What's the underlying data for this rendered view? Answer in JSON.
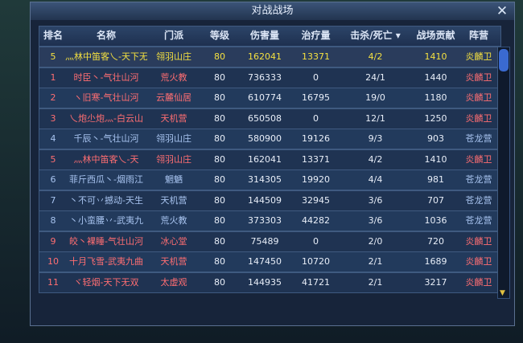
{
  "header": {
    "title": "对战战场"
  },
  "table": {
    "columns": [
      "排名",
      "名称",
      "门派",
      "等级",
      "伤害量",
      "治疗量",
      "击杀/死亡",
      "战场贡献",
      "阵营"
    ],
    "self_row": [
      "5",
      "灬林中笛客乀-天下无",
      "翎羽山庄",
      80,
      162041,
      13371,
      "4/2",
      1410,
      "炎麟卫"
    ],
    "rows": [
      [
        "1",
        "时臣丶-气壮山河",
        "荒火教",
        80,
        736333,
        0,
        "24/1",
        1440,
        "炎麟卫"
      ],
      [
        "2",
        "ヽ旧寒-气壮山河",
        "云麓仙居",
        80,
        610774,
        16795,
        "19/0",
        1180,
        "炎麟卫"
      ],
      [
        "3",
        "乀炮尐炮灬-白云山",
        "天机营",
        80,
        650508,
        0,
        "12/1",
        1250,
        "炎麟卫"
      ],
      [
        "4",
        "千辰丶-气壮山河",
        "翎羽山庄",
        80,
        580900,
        19126,
        "9/3",
        903,
        "苍龙营"
      ],
      [
        "5",
        "灬林中笛客乀-天",
        "翎羽山庄",
        80,
        162041,
        13371,
        "4/2",
        1410,
        "炎麟卫"
      ],
      [
        "6",
        "菲斤西瓜丶-烟雨江",
        "魍魉",
        80,
        314305,
        19920,
        "4/4",
        981,
        "苍龙营"
      ],
      [
        "7",
        "丶不可丷撼动-天生",
        "天机营",
        80,
        144509,
        32945,
        "3/6",
        707,
        "苍龙营"
      ],
      [
        "8",
        "丶小蛮腰丷-武夷九",
        "荒火教",
        80,
        373303,
        44282,
        "3/6",
        1036,
        "苍龙营"
      ],
      [
        "9",
        "皎丶裸睡-气壮山河",
        "冰心堂",
        80,
        75489,
        0,
        "2/0",
        720,
        "炎麟卫"
      ],
      [
        "10",
        "十月飞雪-武夷九曲",
        "天机营",
        80,
        147450,
        10720,
        "2/1",
        1689,
        "炎麟卫"
      ],
      [
        "11",
        "ヾ轻烟-天下无双",
        "太虚观",
        80,
        144935,
        41721,
        "2/1",
        3217,
        "炎麟卫"
      ]
    ]
  }
}
